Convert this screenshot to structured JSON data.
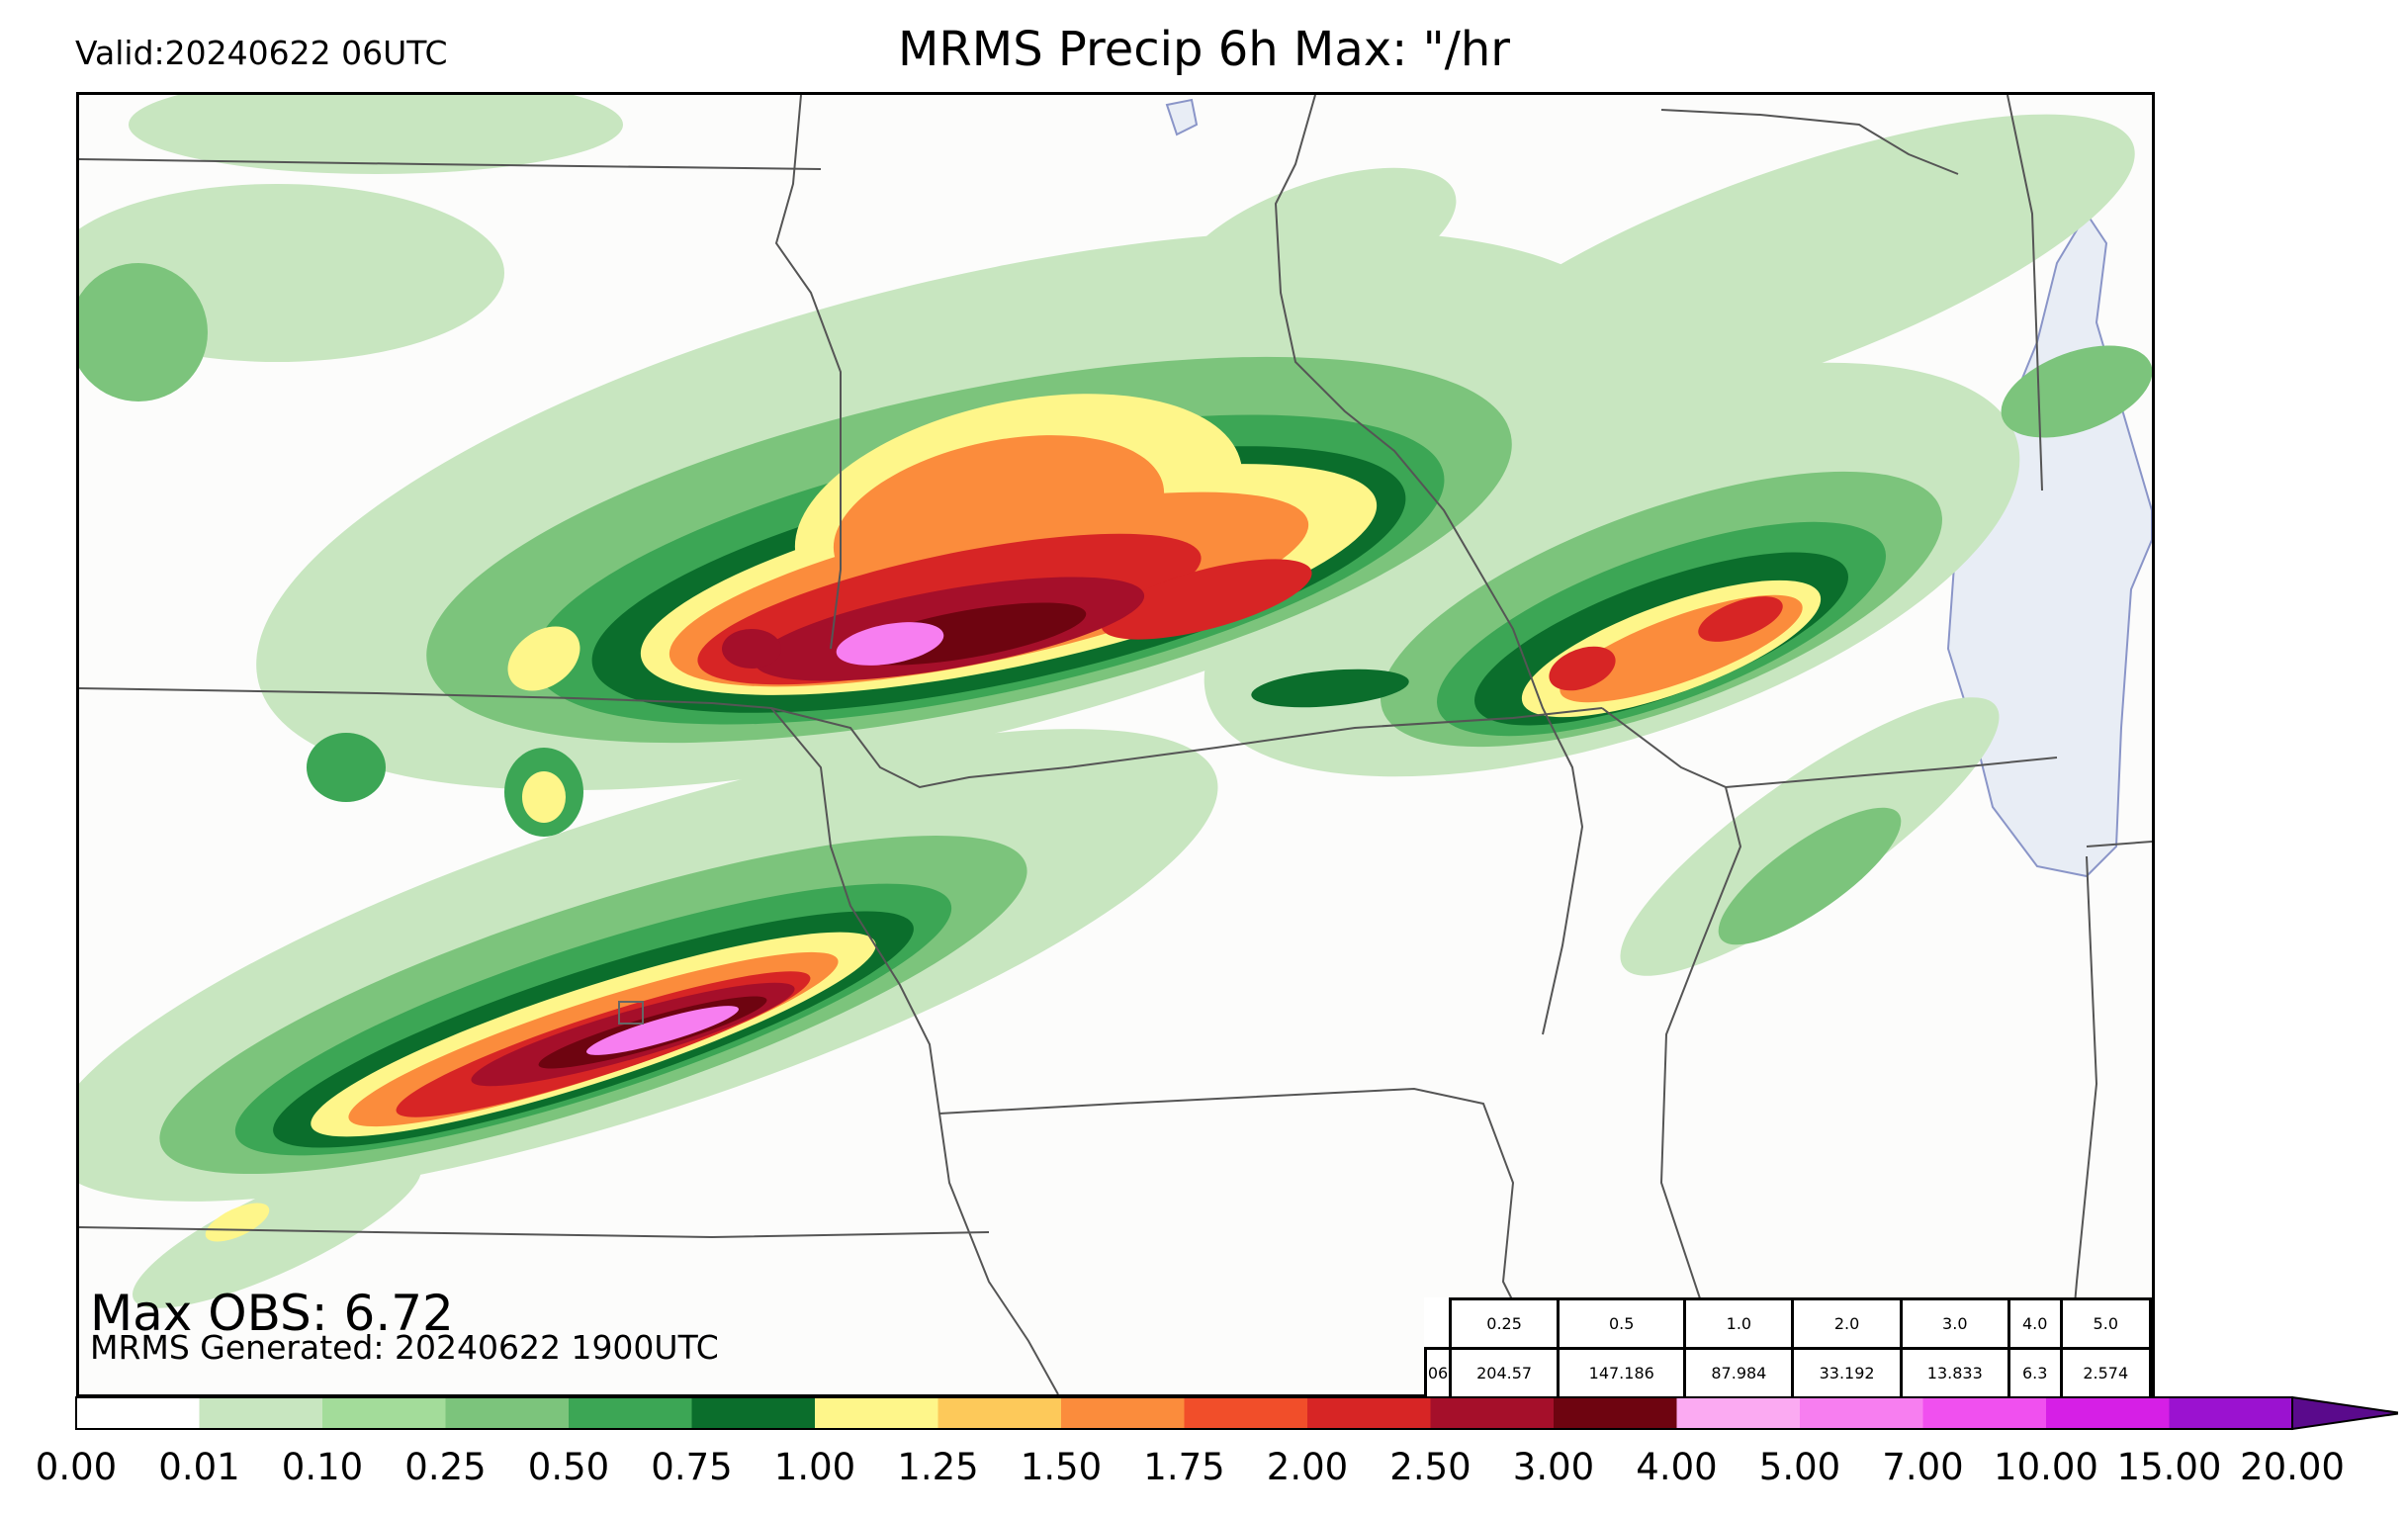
{
  "header": {
    "valid": "Valid:20240622 06UTC",
    "title": "MRMS Precip 6h Max: \"/hr"
  },
  "map": {
    "background": "#fcfcfb",
    "lake_color": "#e8edf5",
    "border_color": "#555555",
    "max_obs": "Max OBS: 6.72",
    "generated": "MRMS Generated: 20240622 1900UTC"
  },
  "stats": {
    "thresholds": [
      "0.25",
      "0.5",
      "1.0",
      "2.0",
      "3.0",
      "4.0",
      "5.0"
    ],
    "row_label": "06",
    "values": [
      "204.57",
      "147.186",
      "87.984",
      "33.192",
      "13.833",
      "6.3",
      "2.574"
    ]
  },
  "colorbar": {
    "ticks": [
      "0.00",
      "0.01",
      "0.10",
      "0.25",
      "0.50",
      "0.75",
      "1.00",
      "1.25",
      "1.50",
      "1.75",
      "2.00",
      "2.50",
      "3.00",
      "4.00",
      "5.00",
      "7.00",
      "10.00",
      "15.00",
      "20.00"
    ],
    "colors": [
      "#ffffff",
      "#c8e6c0",
      "#a3dc9a",
      "#7cc47c",
      "#3ca655",
      "#0b6e2c",
      "#fef68a",
      "#fdc95a",
      "#fb8c3c",
      "#f14e2a",
      "#d72525",
      "#a50f2a",
      "#6e0410",
      "#fbaaf2",
      "#f77ef0",
      "#f050ef",
      "#d61fe6",
      "#9b12d0"
    ],
    "extend_color": "#5a0a8c"
  },
  "legend_colors": {
    "light_green": "#c8e6c0",
    "mid_green": "#7cc47c",
    "green": "#3ca655",
    "dark_green": "#0b6e2c",
    "yellow": "#fef68a",
    "orange": "#fb8c3c",
    "red": "#d72525",
    "dark_red": "#a50f2a",
    "pink": "#f77ef0"
  }
}
